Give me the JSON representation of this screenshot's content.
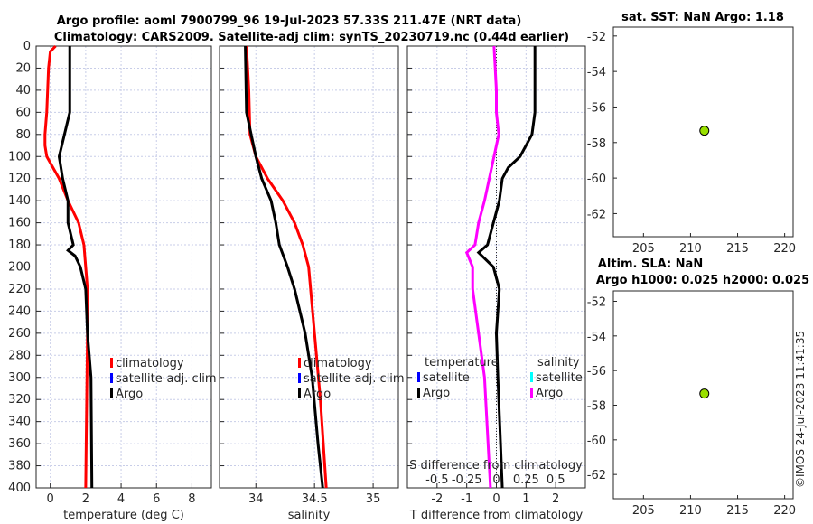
{
  "title_line1": "Argo profile: aoml 7900799_96 19-Jul-2023 57.33S 211.47E (NRT data)",
  "title_line2": "Climatology: CARS2009. Satellite-adj clim: synTS_20230719.nc (0.44d earlier)",
  "timestamp": "©IMOS 24-Jul-2023 11:41:35",
  "colors": {
    "clim": "#ff0000",
    "sat": "#0000ff",
    "argo": "#000000",
    "sal_sat": "#00ffff",
    "sal_argo": "#ff00ff",
    "marker": "#99e000"
  },
  "chart_data": [
    {
      "type": "line",
      "xlabel": "temperature (deg C)",
      "xlim": [
        -0.8,
        9.1
      ],
      "ylim": [
        0,
        400
      ],
      "xticks": [
        0,
        2,
        4,
        6,
        8
      ],
      "yticks": [
        0,
        20,
        40,
        60,
        80,
        100,
        120,
        140,
        160,
        180,
        200,
        220,
        240,
        260,
        280,
        300,
        320,
        340,
        360,
        380,
        400
      ],
      "legend": [
        "climatology",
        "satellite-adj. clim",
        "Argo"
      ],
      "series": [
        {
          "name": "climatology",
          "depth": [
            0,
            5,
            20,
            60,
            80,
            90,
            100,
            120,
            140,
            160,
            180,
            200,
            220,
            260,
            400
          ],
          "values": [
            0.3,
            0,
            -0.1,
            -0.2,
            -0.3,
            -0.3,
            -0.2,
            0.5,
            1.0,
            1.6,
            1.9,
            2.0,
            2.1,
            2.1,
            2.0
          ]
        },
        {
          "name": "Argo",
          "depth": [
            0,
            60,
            80,
            100,
            120,
            140,
            160,
            180,
            185,
            190,
            200,
            220,
            260,
            300,
            400
          ],
          "values": [
            1.1,
            1.1,
            0.8,
            0.5,
            0.7,
            1.0,
            1.0,
            1.3,
            1.0,
            1.4,
            1.7,
            2.0,
            2.1,
            2.3,
            2.35
          ]
        }
      ]
    },
    {
      "type": "line",
      "xlabel": "salinity",
      "xlim": [
        33.69,
        35.215
      ],
      "ylim": [
        0,
        400
      ],
      "xticks": [
        34,
        34.5,
        35
      ],
      "legend": [
        "climatology",
        "satellite-adj. clim",
        "Argo"
      ],
      "series": [
        {
          "name": "climatology",
          "depth": [
            0,
            40,
            80,
            100,
            120,
            140,
            160,
            180,
            200,
            260,
            320,
            400
          ],
          "values": [
            33.92,
            33.94,
            33.95,
            34.0,
            34.1,
            34.23,
            34.33,
            34.4,
            34.45,
            34.5,
            34.55,
            34.6
          ]
        },
        {
          "name": "Argo",
          "depth": [
            0,
            60,
            80,
            100,
            120,
            140,
            160,
            180,
            200,
            220,
            260,
            300,
            360,
            400
          ],
          "values": [
            33.91,
            33.92,
            33.96,
            34.0,
            34.05,
            34.13,
            34.17,
            34.2,
            34.27,
            34.33,
            34.42,
            34.48,
            34.53,
            34.57
          ]
        }
      ]
    },
    {
      "type": "line",
      "xlabel": "T difference from climatology",
      "x2label": "S difference from climatology",
      "xlim": [
        -3,
        3
      ],
      "x2lim": [
        -0.75,
        0.75
      ],
      "ylim": [
        0,
        400
      ],
      "xticks": [
        -2,
        -1,
        0,
        1,
        2
      ],
      "x2ticks": [
        "-0.5",
        "-0.25",
        "0",
        "0.25",
        "0.5"
      ],
      "x2tickvals": [
        -0.5,
        -0.25,
        0,
        0.25,
        0.5
      ],
      "legend_t": {
        "head": "temperature",
        "items": [
          "satellite",
          "Argo"
        ]
      },
      "legend_s": {
        "head": "salinity",
        "items": [
          "satellite",
          "Argo"
        ]
      },
      "series": [
        {
          "name": "T Argo",
          "depth": [
            0,
            20,
            60,
            80,
            100,
            110,
            120,
            140,
            160,
            180,
            187,
            200,
            220,
            260,
            300,
            400
          ],
          "values": [
            1.3,
            1.3,
            1.3,
            1.2,
            0.8,
            0.4,
            0.2,
            0.1,
            -0.1,
            -0.3,
            -0.6,
            -0.1,
            0.1,
            0,
            0.05,
            0.2
          ]
        },
        {
          "name": "S Argo",
          "depth": [
            0,
            40,
            60,
            80,
            100,
            140,
            160,
            180,
            187,
            200,
            220,
            300,
            400
          ],
          "values": [
            -0.02,
            0,
            0,
            0.02,
            -0.02,
            -0.1,
            -0.15,
            -0.18,
            -0.25,
            -0.2,
            -0.2,
            -0.1,
            -0.05
          ]
        }
      ]
    },
    {
      "type": "scatter",
      "title": "sat. SST: NaN Argo: 1.18",
      "xlim": [
        201.8,
        220.9
      ],
      "ylim": [
        -63.3,
        -51.5
      ],
      "xticks": [
        205,
        210,
        215,
        220
      ],
      "yticks": [
        -52,
        -54,
        -56,
        -58,
        -60,
        -62
      ],
      "points": [
        [
          211.47,
          -57.33
        ]
      ]
    },
    {
      "type": "scatter",
      "title": "Altim. SLA: NaN",
      "title2": "Argo h1000: 0.025 h2000: 0.025",
      "xlim": [
        201.8,
        220.9
      ],
      "ylim": [
        -63.4,
        -51.4
      ],
      "xticks": [
        205,
        210,
        215,
        220
      ],
      "yticks": [
        -52,
        -54,
        -56,
        -58,
        -60,
        -62
      ],
      "points": [
        [
          211.47,
          -57.33
        ]
      ]
    }
  ]
}
